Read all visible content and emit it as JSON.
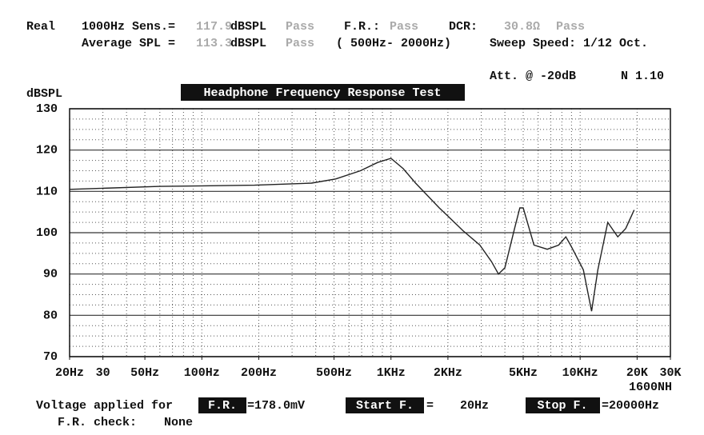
{
  "header": {
    "line1": [
      "Real",
      "1000Hz Sens.=",
      "117.9",
      "dBSPL",
      "Pass",
      "F.R.:",
      "Pass",
      "DCR:",
      "30.8Ω",
      "Pass"
    ],
    "line2": [
      "Average SPL =",
      "113.3",
      "dBSPL",
      "Pass",
      "( 500Hz- 2000Hz)",
      "Sweep Speed: 1/12 Oct."
    ],
    "att": "Att. @ -20dB",
    "version": "N 1.10"
  },
  "chart_data": {
    "type": "line",
    "title": "Headphone Frequency Response Test",
    "y_label": "dBSPL",
    "model": "1600NH",
    "x_scale": "log",
    "grid": true,
    "color": "#222222",
    "xlim": [
      20,
      30000
    ],
    "xticks": [
      {
        "value": 20,
        "label": "20Hz"
      },
      30,
      {
        "value": 50,
        "label": "50Hz"
      },
      {
        "value": 100,
        "label": "100Hz"
      },
      {
        "value": 200,
        "label": "200Hz"
      },
      {
        "value": 500,
        "label": "500Hz"
      },
      {
        "value": 1000,
        "label": "1KHz"
      },
      {
        "value": 2000,
        "label": "2KHz"
      },
      {
        "value": 5000,
        "label": "5KHz"
      },
      {
        "value": 10000,
        "label": "10KHz"
      },
      {
        "value": 20000,
        "label": "20K"
      },
      {
        "value": 30000,
        "label": "30K"
      }
    ],
    "ylim": [
      70,
      130
    ],
    "yticks": [
      70,
      80,
      90,
      100,
      110,
      120,
      130
    ],
    "x": [
      20,
      60,
      190,
      380,
      510,
      690,
      850,
      1000,
      1160,
      1350,
      1800,
      2000,
      2400,
      2950,
      3400,
      3700,
      4000,
      4500,
      4800,
      5000,
      5700,
      6700,
      7700,
      8400,
      8900,
      9500,
      10400,
      11500,
      12400,
      14000,
      15800,
      17400,
      19300
    ],
    "values": [
      110.5,
      111.2,
      111.5,
      112,
      113,
      115,
      117,
      118,
      115.5,
      112,
      106,
      104,
      100.5,
      97,
      93,
      90,
      91.5,
      101,
      106,
      106,
      97,
      96,
      97,
      99,
      97,
      94.5,
      91,
      81,
      91,
      102.5,
      99,
      101,
      105.5
    ]
  },
  "footer": {
    "voltage_label": "Voltage applied for",
    "fr_box": "F.R.",
    "voltage": "=178.0mV",
    "start_box": "Start F.",
    "start_eq": "=",
    "start": "20Hz",
    "stop_box": "Stop F.",
    "stop": "=20000Hz",
    "check_label": "F.R. check:",
    "check": "None"
  }
}
